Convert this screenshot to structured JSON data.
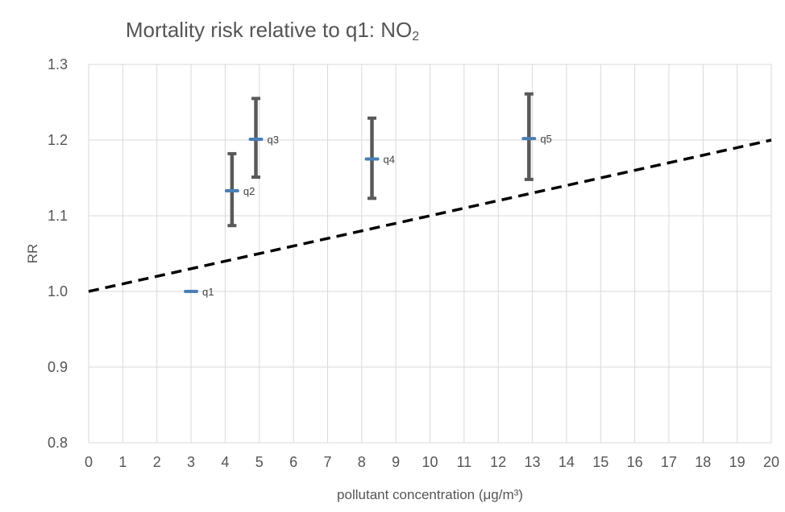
{
  "chart_data": {
    "type": "scatter",
    "title": {
      "main": "Mortality risk relative to q1: NO",
      "subscript": "2"
    },
    "xlabel": "pollutant concentration (μg/m³)",
    "ylabel": "RR",
    "xlim": [
      0,
      20
    ],
    "ylim": [
      0.8,
      1.3
    ],
    "x_ticks": [
      "0",
      "1",
      "2",
      "3",
      "4",
      "5",
      "6",
      "7",
      "8",
      "9",
      "10",
      "11",
      "12",
      "13",
      "14",
      "15",
      "16",
      "17",
      "18",
      "19",
      "20"
    ],
    "y_ticks": [
      "0.8",
      "0.9",
      "1.0",
      "1.1",
      "1.2",
      "1.3"
    ],
    "grid": true,
    "points": [
      {
        "label": "q1",
        "x": 3.0,
        "y": 1.0,
        "ci_low": 1.0,
        "ci_high": 1.0
      },
      {
        "label": "q2",
        "x": 4.2,
        "y": 1.133,
        "ci_low": 1.087,
        "ci_high": 1.182
      },
      {
        "label": "q3",
        "x": 4.9,
        "y": 1.201,
        "ci_low": 1.151,
        "ci_high": 1.255
      },
      {
        "label": "q4",
        "x": 8.3,
        "y": 1.175,
        "ci_low": 1.123,
        "ci_high": 1.229
      },
      {
        "label": "q5",
        "x": 12.9,
        "y": 1.202,
        "ci_low": 1.148,
        "ci_high": 1.261
      }
    ],
    "reference_line": {
      "style": "dashed",
      "x": [
        0,
        20
      ],
      "y": [
        1.0,
        1.2
      ]
    },
    "colors": {
      "error_bar": "#595959",
      "marker": "#4a7fb5",
      "reference": "#000000",
      "grid": "#d9d9d9"
    }
  }
}
